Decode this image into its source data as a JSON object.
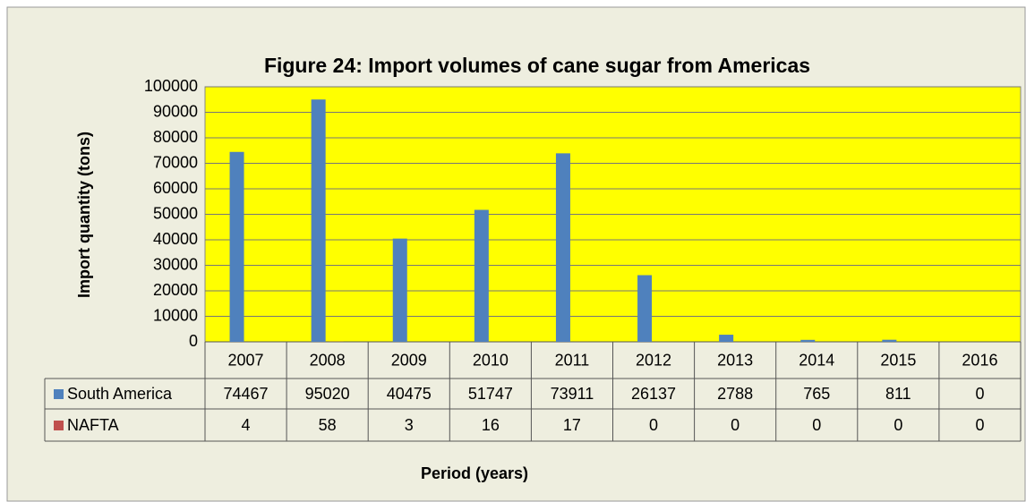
{
  "chart_data": {
    "type": "bar",
    "title": "Figure 24: Import volumes of cane sugar from Americas",
    "x_label": "Period (years)",
    "y_label": "Import quantity (tons)",
    "categories": [
      "2007",
      "2008",
      "2009",
      "2010",
      "2011",
      "2012",
      "2013",
      "2014",
      "2015",
      "2016"
    ],
    "series": [
      {
        "name": "South America",
        "color": "#4f81bd",
        "values": [
          74467,
          95020,
          40475,
          51747,
          73911,
          26137,
          2788,
          765,
          811,
          0
        ]
      },
      {
        "name": "NAFTA",
        "color": "#c0504d",
        "values": [
          4,
          58,
          3,
          16,
          17,
          0,
          0,
          0,
          0,
          0
        ]
      }
    ],
    "ylim": [
      0,
      100000
    ],
    "yticks": [
      0,
      10000,
      20000,
      30000,
      40000,
      50000,
      60000,
      70000,
      80000,
      90000,
      100000
    ],
    "grid": true
  }
}
